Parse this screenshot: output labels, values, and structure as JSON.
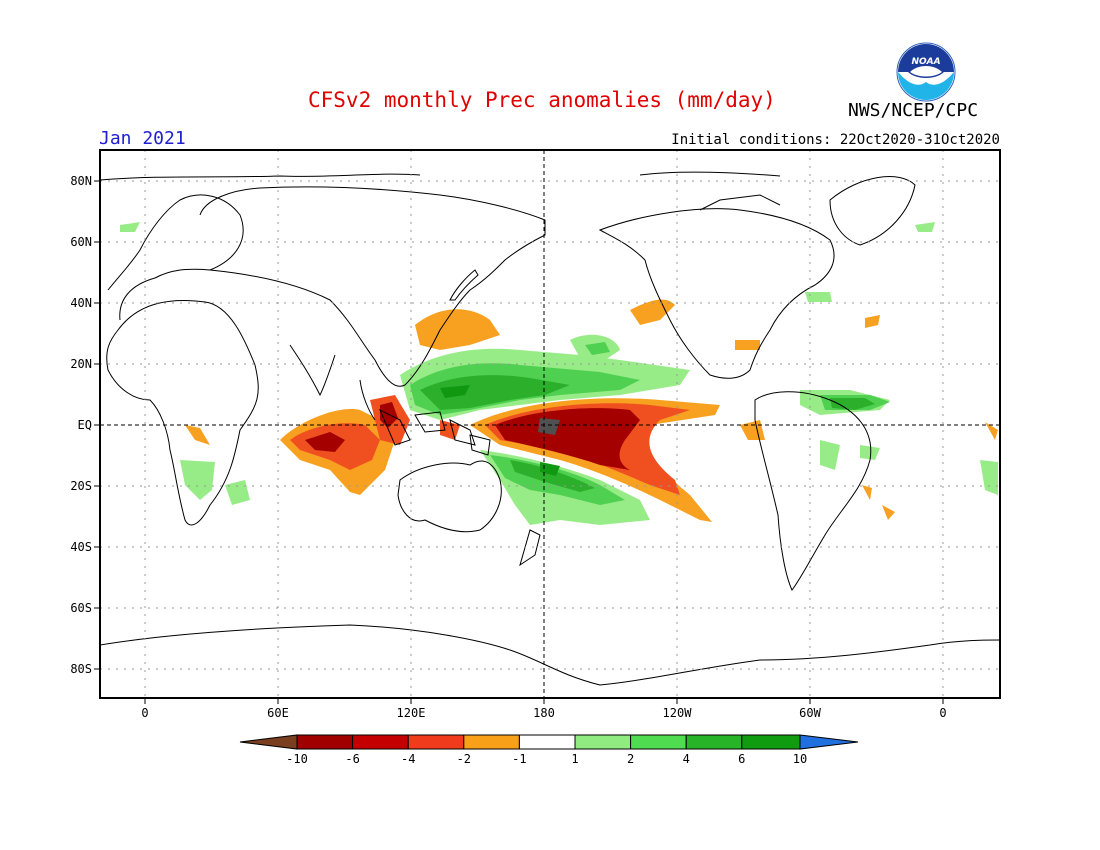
{
  "header": {
    "title": "CFSv2 monthly Prec anomalies (mm/day)",
    "month": "Jan 2021",
    "agency": "NWS/NCEP/CPC",
    "initial_conditions": "Initial conditions: 22Oct2020-31Oct2020",
    "logo_text": "NOAA"
  },
  "axes": {
    "lat_labels": [
      "80N",
      "60N",
      "40N",
      "20N",
      "EQ",
      "20S",
      "40S",
      "60S",
      "80S"
    ],
    "lon_labels": [
      "0",
      "60E",
      "120E",
      "180",
      "120W",
      "60W",
      "0"
    ]
  },
  "colorbar": {
    "labels": [
      "-10",
      "-6",
      "-4",
      "-2",
      "-1",
      "1",
      "2",
      "4",
      "6",
      "10"
    ],
    "colors": [
      "#7a3f1e",
      "#a00000",
      "#c40000",
      "#f03c1c",
      "#f8a018",
      "#ffffff",
      "#90ec80",
      "#50dc50",
      "#28b428",
      "#109c10",
      "#2070e0"
    ]
  },
  "colors": {
    "title": "#e00000",
    "month": "#2020d0",
    "strong_dry": "#a50000",
    "dry": "#d42018",
    "moderate_dry": "#f05020",
    "light_dry": "#f8a020",
    "light_wet": "#98ec88",
    "wet": "#50d050",
    "very_wet": "#2cb02c",
    "strongest_wet": "#109810"
  }
}
